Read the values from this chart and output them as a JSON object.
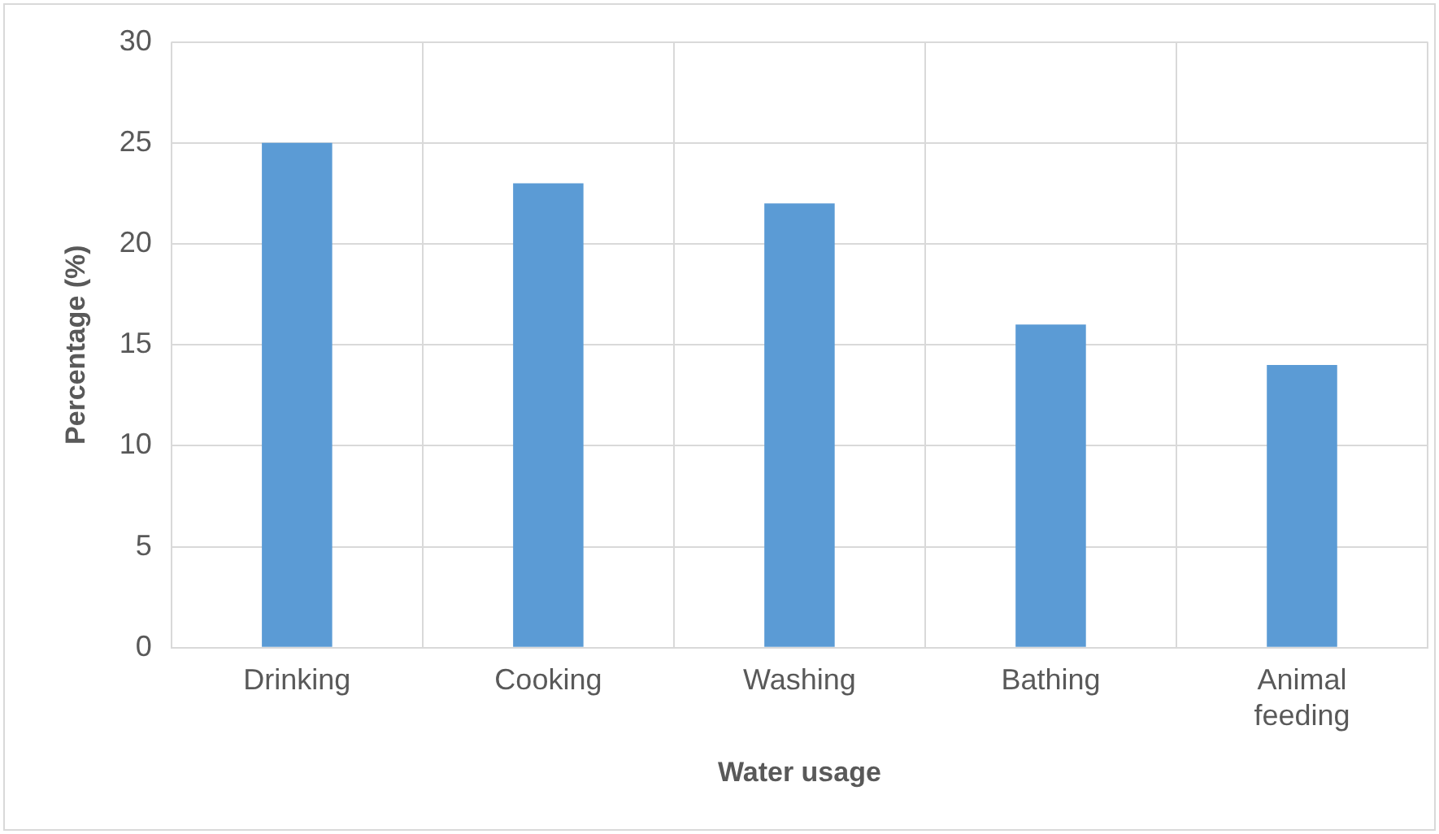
{
  "chart_data": {
    "type": "bar",
    "xlabel": "Water usage",
    "ylabel": "Percentage (%)",
    "categories": [
      "Drinking",
      "Cooking",
      "Washing",
      "Bathing",
      "Animal feeding"
    ],
    "series": [
      {
        "color": "#5b9bd5",
        "values": [
          25,
          23,
          22,
          16,
          14
        ]
      }
    ],
    "ylim": [
      0,
      30
    ],
    "yticks": [
      0,
      5,
      10,
      15,
      20,
      25,
      30
    ],
    "grid": true,
    "legend": false
  }
}
